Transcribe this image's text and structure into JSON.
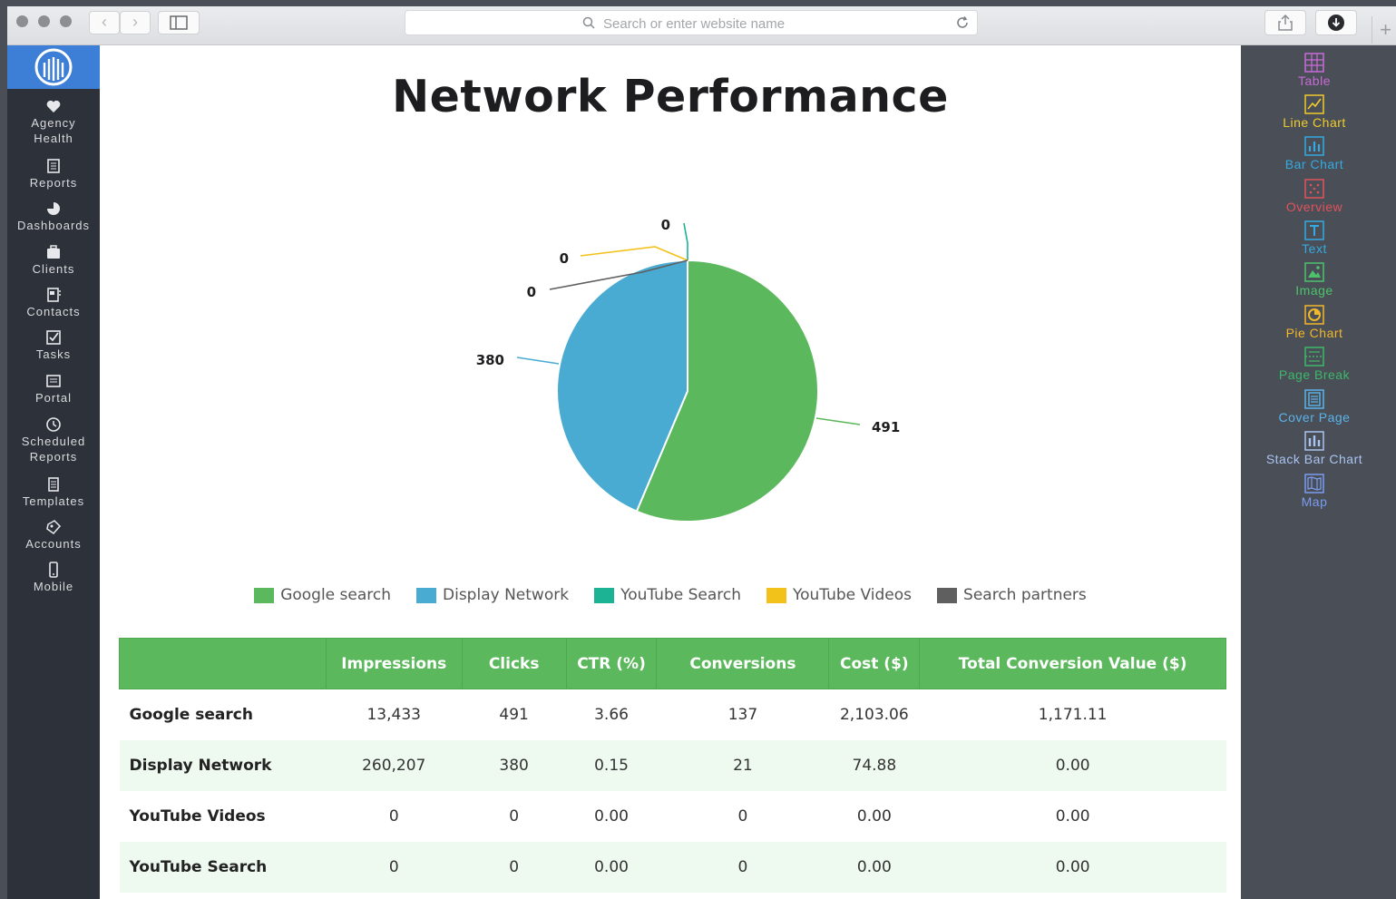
{
  "browser": {
    "address_placeholder": "Search or enter website name",
    "back_label": "‹",
    "forward_label": "›",
    "new_tab_label": "+"
  },
  "sidebar": {
    "items": [
      {
        "label_line1": "Agency",
        "label_line2": "Health",
        "icon": "heart-icon"
      },
      {
        "label_line1": "Reports",
        "label_line2": "",
        "icon": "reports-icon"
      },
      {
        "label_line1": "Dashboards",
        "label_line2": "",
        "icon": "dashboard-pie-icon"
      },
      {
        "label_line1": "Clients",
        "label_line2": "",
        "icon": "briefcase-icon"
      },
      {
        "label_line1": "Contacts",
        "label_line2": "",
        "icon": "address-book-icon"
      },
      {
        "label_line1": "Tasks",
        "label_line2": "",
        "icon": "checkbox-icon"
      },
      {
        "label_line1": "Portal",
        "label_line2": "",
        "icon": "portal-icon"
      },
      {
        "label_line1": "Scheduled",
        "label_line2": "Reports",
        "icon": "clock-icon"
      },
      {
        "label_line1": "Templates",
        "label_line2": "",
        "icon": "template-icon"
      },
      {
        "label_line1": "Accounts",
        "label_line2": "",
        "icon": "accounts-icon"
      },
      {
        "label_line1": "Mobile",
        "label_line2": "",
        "icon": "mobile-icon"
      }
    ]
  },
  "report": {
    "title": "Network Performance",
    "legend": [
      {
        "label": "Google search",
        "color": "#5cb85c"
      },
      {
        "label": "Display Network",
        "color": "#4aabd2"
      },
      {
        "label": "YouTube Search",
        "color": "#1bb394"
      },
      {
        "label": "YouTube Videos",
        "color": "#f3c21a"
      },
      {
        "label": "Search partners",
        "color": "#5f5f5f"
      }
    ],
    "table": {
      "headers": [
        "",
        "Impressions",
        "Clicks",
        "CTR (%)",
        "Conversions",
        "Cost ($)",
        "Total Conversion Value ($)"
      ],
      "rows": [
        [
          "Google search",
          "13,433",
          "491",
          "3.66",
          "137",
          "2,103.06",
          "1,171.11"
        ],
        [
          "Display Network",
          "260,207",
          "380",
          "0.15",
          "21",
          "74.88",
          "0.00"
        ],
        [
          "YouTube Videos",
          "0",
          "0",
          "0.00",
          "0",
          "0.00",
          "0.00"
        ],
        [
          "YouTube Search",
          "0",
          "0",
          "0.00",
          "0",
          "0.00",
          "0.00"
        ]
      ]
    }
  },
  "chart_data": {
    "type": "pie",
    "title": "Network Performance",
    "categories": [
      "Google search",
      "Display Network",
      "YouTube Search",
      "YouTube Videos",
      "Search partners"
    ],
    "values": [
      491,
      380,
      0,
      0,
      0
    ],
    "data_labels": [
      "491",
      "380",
      "0",
      "0",
      "0"
    ],
    "colors": [
      "#5cb85c",
      "#4aabd2",
      "#1bb394",
      "#f3c21a",
      "#5f5f5f"
    ],
    "legend_position": "bottom"
  },
  "widgets": [
    {
      "label": "Table",
      "color": "#c86bd6",
      "icon": "table-grid-icon"
    },
    {
      "label": "Line Chart",
      "color": "#f0cc2c",
      "icon": "line-chart-icon"
    },
    {
      "label": "Bar Chart",
      "color": "#35a9e0",
      "icon": "bar-chart-icon"
    },
    {
      "label": "Overview",
      "color": "#e0535a",
      "icon": "overview-icon"
    },
    {
      "label": "Text",
      "color": "#35a9e0",
      "icon": "text-icon"
    },
    {
      "label": "Image",
      "color": "#4cc36a",
      "icon": "image-icon"
    },
    {
      "label": "Pie Chart",
      "color": "#f2b72a",
      "icon": "pie-chart-icon"
    },
    {
      "label": "Page Break",
      "color": "#3cb86a",
      "icon": "page-break-icon"
    },
    {
      "label": "Cover Page",
      "color": "#5ab4ea",
      "icon": "cover-page-icon"
    },
    {
      "label": "Stack Bar Chart",
      "color": "#a9c4f0",
      "icon": "stack-bar-chart-icon"
    },
    {
      "label": "Map",
      "color": "#7a9cef",
      "icon": "map-icon"
    }
  ]
}
